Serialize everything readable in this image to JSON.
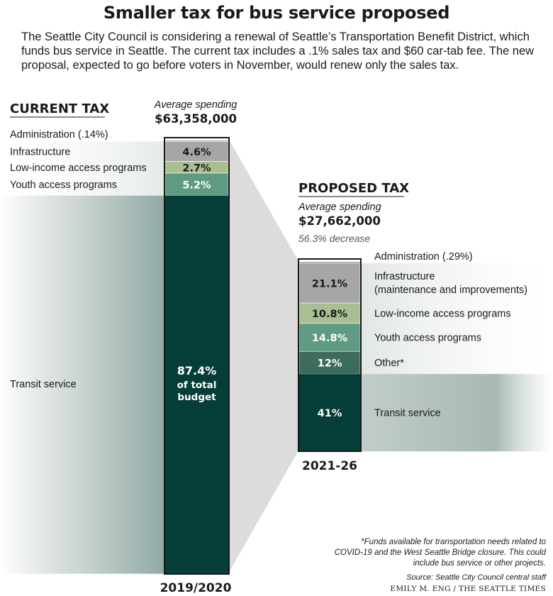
{
  "title": "Smaller tax for bus service proposed",
  "intro": "The Seattle City Council is considering a renewal of Seattle’s Transportation Benefit District, which funds bus service in Seattle. The current tax includes a .1% sales tax and $60 car-tab fee. The new proposal, expected to go before voters in November, would renew only the sales tax.",
  "colors": {
    "admin": "#8a8a8a",
    "infrastructure": "#a6a6a6",
    "low_income": "#a9bf92",
    "youth": "#5f9a83",
    "other": "#3d6b5c",
    "transit": "#053d38"
  },
  "chart_data": [
    {
      "type": "stacked-bar",
      "panel": "CURRENT TAX",
      "subtitle": "Average spending",
      "total": "$63,358,000",
      "total_value": 63358000,
      "period": "2019/2020",
      "segments": [
        {
          "name": "Administration (.14%)",
          "value": 0.14,
          "label": "",
          "color_key": "admin"
        },
        {
          "name": "Infrastructure",
          "value": 4.6,
          "label": "4.6%",
          "color_key": "infrastructure"
        },
        {
          "name": "Low-income access programs",
          "value": 2.7,
          "label": "2.7%",
          "color_key": "low_income"
        },
        {
          "name": "Youth access programs",
          "value": 5.2,
          "label": "5.2%",
          "color_key": "youth"
        },
        {
          "name": "Transit service",
          "value": 87.4,
          "label": "87.4%",
          "label_sub": "of total budget",
          "color_key": "transit"
        }
      ]
    },
    {
      "type": "stacked-bar",
      "panel": "PROPOSED TAX",
      "subtitle": "Average spending",
      "total": "$27,662,000",
      "total_value": 27662000,
      "change": "56.3% decrease",
      "period": "2021-26",
      "segments": [
        {
          "name": "Administration (.29%)",
          "value": 0.29,
          "label": "",
          "color_key": "admin"
        },
        {
          "name": "Infrastructure (maintenance and improvements)",
          "value": 21.1,
          "label": "21.1%",
          "color_key": "infrastructure"
        },
        {
          "name": "Low-income access programs",
          "value": 10.8,
          "label": "10.8%",
          "color_key": "low_income"
        },
        {
          "name": "Youth access programs",
          "value": 14.8,
          "label": "14.8%",
          "color_key": "youth"
        },
        {
          "name": "Other*",
          "value": 12,
          "label": "12%",
          "color_key": "other"
        },
        {
          "name": "Transit service",
          "value": 41,
          "label": "41%",
          "color_key": "transit"
        }
      ]
    }
  ],
  "footnote": "*Funds available for transportation needs related to COVID-19 and the West Seattle Bridge closure. This could include bus service or other projects.",
  "source": "Source: Seattle City Council central staff",
  "credit": "EMILY M. ENG / THE SEATTLE TIMES"
}
